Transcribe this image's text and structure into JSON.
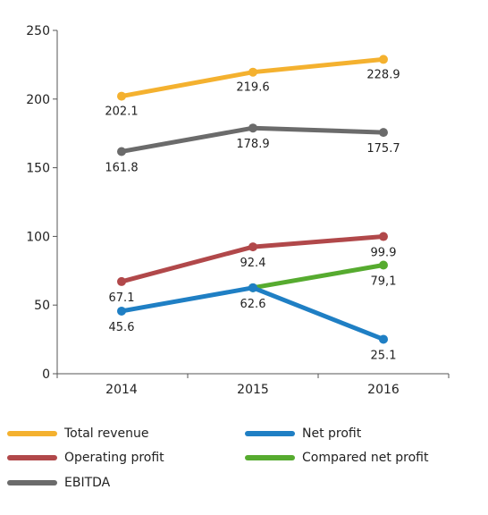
{
  "chart_data": {
    "type": "line",
    "title": "",
    "xlabel": "",
    "ylabel": "",
    "categories": [
      "2014",
      "2015",
      "2016"
    ],
    "ylim": [
      0,
      250
    ],
    "yticks": [
      "0",
      "50",
      "100",
      "150",
      "200",
      "250"
    ],
    "grid": false,
    "legend_position": "bottom",
    "series": [
      {
        "name": "Total revenue",
        "color": "#f4b12f",
        "values": [
          202.1,
          219.6,
          228.9
        ],
        "labels": [
          "202.1",
          "219.6",
          "228.9"
        ]
      },
      {
        "name": "EBITDA",
        "color": "#6b6b6b",
        "values": [
          161.8,
          178.9,
          175.7
        ],
        "labels": [
          "161.8",
          "178.9",
          "175.7"
        ]
      },
      {
        "name": "Operating profit",
        "color": "#b1484a",
        "values": [
          67.1,
          92.4,
          99.9
        ],
        "labels": [
          "67.1",
          "92.4",
          "99.9"
        ]
      },
      {
        "name": "Net profit",
        "color": "#1f7fc4",
        "values": [
          45.6,
          62.6,
          25.1
        ],
        "labels": [
          "45.6",
          "62.6",
          "25.1"
        ]
      },
      {
        "name": "Compared net profit",
        "color": "#56ab2f",
        "values": [
          null,
          62.6,
          79.1
        ],
        "labels": [
          null,
          null,
          "79,1"
        ]
      }
    ]
  },
  "legend": [
    {
      "label": "Total revenue",
      "color": "#f4b12f"
    },
    {
      "label": "Net profit",
      "color": "#1f7fc4"
    },
    {
      "label": "Operating profit",
      "color": "#b1484a"
    },
    {
      "label": "Compared net profit",
      "color": "#56ab2f"
    },
    {
      "label": "EBITDA",
      "color": "#6b6b6b"
    }
  ]
}
